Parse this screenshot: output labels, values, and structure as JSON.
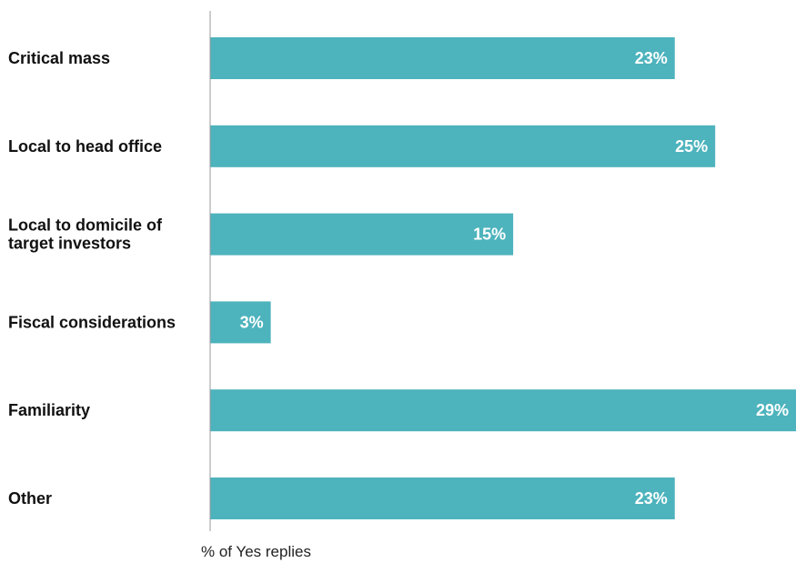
{
  "chart_data": {
    "type": "bar",
    "orientation": "horizontal",
    "categories": [
      [
        "Critical mass"
      ],
      [
        "Local to head office"
      ],
      [
        "Local to domicile of",
        "target investors"
      ],
      [
        "Fiscal considerations"
      ],
      [
        "Familiarity"
      ],
      [
        "Other"
      ]
    ],
    "values": [
      23,
      25,
      15,
      3,
      29,
      23
    ],
    "value_labels": [
      "23%",
      "25%",
      "15%",
      "3%",
      "29%",
      "23%"
    ],
    "xlabel": "% of Yes replies",
    "ylabel": "",
    "xlim": [
      0,
      29
    ],
    "grid": false,
    "bar_color": "#4db3bd",
    "label_color": "#ffffff"
  }
}
